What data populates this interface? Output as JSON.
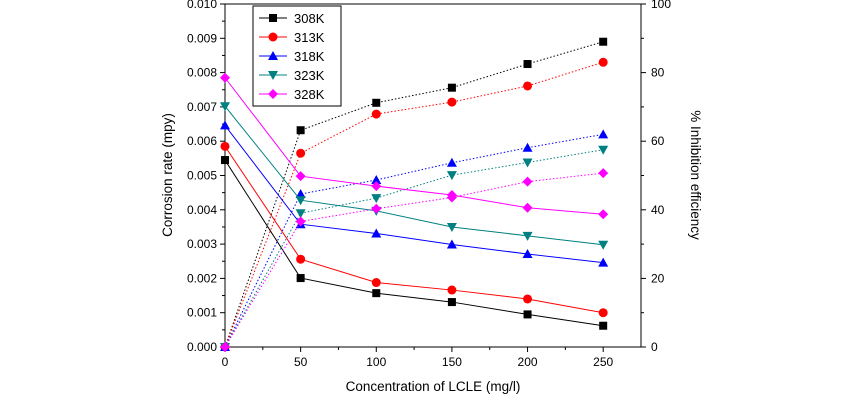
{
  "chart_data": {
    "type": "line",
    "x": [
      0,
      50,
      100,
      150,
      200,
      250
    ],
    "xlabel": "Concentration of LCLE (mg/l)",
    "ylabel": "Corrosion rate (mpy)",
    "y2label": "% Inhibition efficiency",
    "xlim": [
      0,
      275
    ],
    "ylim": [
      0,
      0.01
    ],
    "y2lim": [
      0,
      100
    ],
    "x_ticks": [
      "0",
      "50",
      "100",
      "150",
      "200",
      "250"
    ],
    "y_ticks": [
      "0.000",
      "0.001",
      "0.002",
      "0.003",
      "0.004",
      "0.005",
      "0.006",
      "0.007",
      "0.008",
      "0.009",
      "0.010"
    ],
    "y2_ticks": [
      "0",
      "20",
      "40",
      "60",
      "80",
      "100"
    ],
    "legend_position": "top-left",
    "series": [
      {
        "name": "308K",
        "color": "#000000",
        "marker": "square",
        "corrosion_rate": [
          0.00545,
          0.00201,
          0.00157,
          0.00131,
          0.00095,
          0.00062
        ],
        "inhibition_efficiency": [
          0,
          63.2,
          71.2,
          75.6,
          82.5,
          89.0
        ]
      },
      {
        "name": "313K",
        "color": "#ff0000",
        "marker": "circle",
        "corrosion_rate": [
          0.00585,
          0.00256,
          0.00188,
          0.00166,
          0.0014,
          0.001
        ],
        "inhibition_efficiency": [
          0,
          56.5,
          67.9,
          71.4,
          76.1,
          83.0
        ]
      },
      {
        "name": "318K",
        "color": "#0000ff",
        "marker": "triangle-up",
        "corrosion_rate": [
          0.00646,
          0.00358,
          0.00331,
          0.00299,
          0.00271,
          0.00246
        ],
        "inhibition_efficiency": [
          0,
          44.6,
          48.7,
          53.7,
          58.1,
          62.0
        ]
      },
      {
        "name": "323K",
        "color": "#008080",
        "marker": "triangle-down",
        "corrosion_rate": [
          0.00702,
          0.00428,
          0.00397,
          0.0035,
          0.00324,
          0.00298
        ],
        "inhibition_efficiency": [
          0,
          39.0,
          43.4,
          50.1,
          53.8,
          57.5
        ]
      },
      {
        "name": "328K",
        "color": "#ff00ff",
        "marker": "diamond",
        "corrosion_rate": [
          0.00785,
          0.00498,
          0.00469,
          0.00443,
          0.00406,
          0.00387
        ],
        "inhibition_efficiency": [
          0,
          36.6,
          40.3,
          43.6,
          48.2,
          50.7
        ]
      }
    ]
  }
}
